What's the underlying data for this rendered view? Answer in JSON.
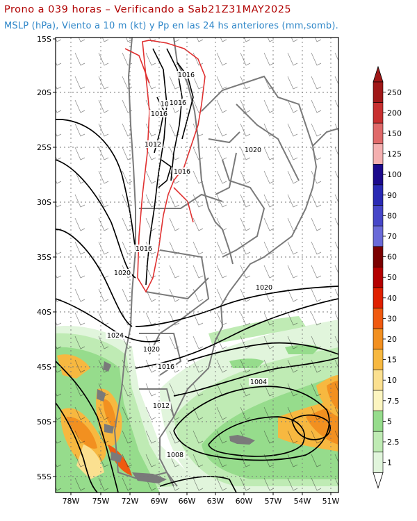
{
  "header": {
    "title": "Prono a 039 horas – Verificando a Sab21Z31MAY2025",
    "subtitle": "MSLP (hPa), Viento a 10 m (kt) y Pp en las 24 hs anteriores (mm,somb)."
  },
  "map": {
    "lat_ticks": [
      "15S",
      "20S",
      "25S",
      "30S",
      "35S",
      "40S",
      "45S",
      "50S",
      "55S"
    ],
    "lon_ticks": [
      "78W",
      "75W",
      "72W",
      "69W",
      "66W",
      "63W",
      "60W",
      "57W",
      "54W",
      "51W"
    ],
    "isobar_labels": [
      "1016",
      "1012",
      "1016",
      "1016",
      "1012",
      "1016",
      "1020",
      "1016",
      "1020",
      "1020",
      "1024",
      "1020",
      "1016",
      "1004",
      "1012",
      "1008"
    ]
  },
  "colorbar": {
    "levels": [
      "250",
      "200",
      "150",
      "125",
      "100",
      "90",
      "80",
      "70",
      "60",
      "50",
      "40",
      "30",
      "20",
      "15",
      "10",
      "7.5",
      "5",
      "2.5",
      "1"
    ],
    "colors": [
      "#a01818",
      "#c83030",
      "#e06a6a",
      "#f4b0b0",
      "#1c0a8c",
      "#2a2ab4",
      "#4646c8",
      "#6a6ad8",
      "#7a0000",
      "#b40000",
      "#e02000",
      "#f05a10",
      "#f29020",
      "#f7b840",
      "#fbe090",
      "#fcf5c0",
      "#96dc8c",
      "#bfebb4",
      "#e1f5dc"
    ]
  }
}
